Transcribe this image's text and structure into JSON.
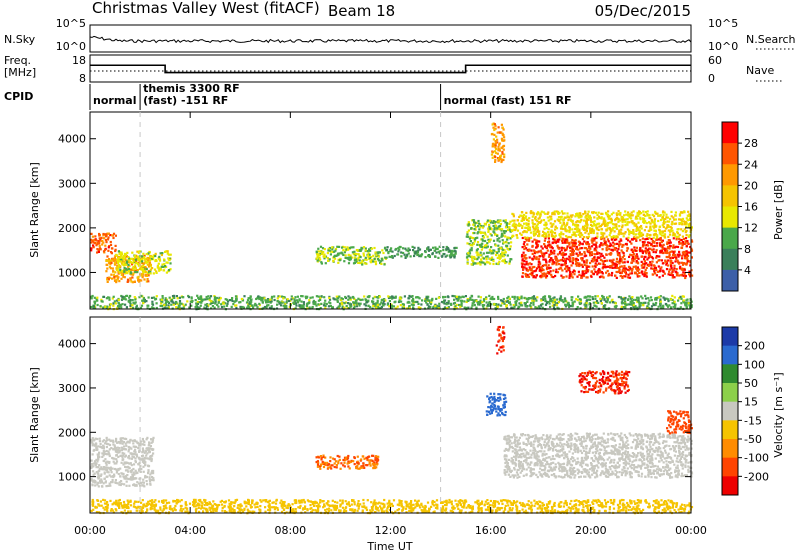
{
  "header": {
    "title": "Christmas Valley West (fitACF)",
    "beam": "Beam 18",
    "date": "05/Dec/2015"
  },
  "sky_panel": {
    "left_label": "N.Sky",
    "right_label": "N.Search",
    "ticks_left": [
      "10^5",
      "10^0"
    ],
    "ticks_right": [
      "10^5",
      "10^0"
    ]
  },
  "freq_panel": {
    "left_label_1": "Freq.",
    "left_label_2": "[MHz]",
    "right_label": "Nave",
    "ticks_left": [
      "18",
      "8"
    ],
    "ticks_right": [
      "60",
      "0"
    ]
  },
  "cpid": {
    "label": "CPID",
    "modes": [
      {
        "start": 0,
        "lines": [
          "normal"
        ]
      },
      {
        "start": 2,
        "lines": [
          "themis 3300 RF",
          "(fast) -151 RF"
        ]
      },
      {
        "start": 14,
        "lines": [
          "normal (fast) 151 RF"
        ]
      }
    ]
  },
  "x_axis": {
    "label": "Time UT",
    "ticks": [
      "00:00",
      "04:00",
      "08:00",
      "12:00",
      "16:00",
      "20:00",
      "00:00"
    ]
  },
  "power_panel": {
    "ylabel": "Slant Range [km]",
    "yticks": [
      "1000",
      "2000",
      "3000",
      "4000"
    ],
    "colorbar_label": "Power [dB]",
    "colorbar_ticks": [
      "28",
      "24",
      "20",
      "16",
      "12",
      "8",
      "4"
    ],
    "colorbar_colors": [
      "#ff0000",
      "#ff5500",
      "#ff9900",
      "#f5c400",
      "#e8e800",
      "#4aa84a",
      "#3a7f5a",
      "#3c5fa8",
      "#1c1ccc"
    ]
  },
  "velocity_panel": {
    "ylabel": "Slant Range [km]",
    "yticks": [
      "1000",
      "2000",
      "3000",
      "4000"
    ],
    "colorbar_label": "Velocity [m s⁻¹]",
    "colorbar_ticks": [
      "200",
      "100",
      "50",
      "15",
      "-15",
      "-50",
      "-100",
      "-200"
    ],
    "colorbar_colors": [
      "#1c3aa8",
      "#2a6ad0",
      "#2f8a2f",
      "#8ccf4a",
      "#c8c8c0",
      "#f5c400",
      "#ff8c00",
      "#ff4400",
      "#ee0000"
    ]
  },
  "chart_data": {
    "type": "heatmap",
    "title": "Christmas Valley West (fitACF)",
    "xlabel": "Time UT",
    "ylabel": "Slant Range [km]",
    "xlim_hours": [
      0,
      24
    ],
    "ylim_km": [
      180,
      4600
    ],
    "frequency_mhz": [
      {
        "t0": 0,
        "t1": 3,
        "value": 14.2
      },
      {
        "t0": 3,
        "t1": 15,
        "value": 11.5
      },
      {
        "t0": 15,
        "t1": 24,
        "value": 14.2
      }
    ],
    "power_regions": [
      {
        "t0": 0,
        "t1": 1.0,
        "r0": 1450,
        "r1": 1900,
        "value_db": 26
      },
      {
        "t0": 0.6,
        "t1": 2.4,
        "r0": 800,
        "r1": 1400,
        "value_db": 22
      },
      {
        "t0": 1.0,
        "t1": 3.2,
        "r0": 1000,
        "r1": 1500,
        "value_db": 14
      },
      {
        "t0": 0,
        "t1": 24,
        "r0": 200,
        "r1": 500,
        "value_db": 10
      },
      {
        "t0": 9.0,
        "t1": 11.8,
        "r0": 1200,
        "r1": 1600,
        "value_db": 12
      },
      {
        "t0": 11.8,
        "t1": 14.6,
        "r0": 1350,
        "r1": 1600,
        "value_db": 8
      },
      {
        "t0": 15.0,
        "t1": 16.8,
        "r0": 1200,
        "r1": 2200,
        "value_db": 12
      },
      {
        "t0": 17.2,
        "t1": 24,
        "r0": 900,
        "r1": 1800,
        "value_db": 28
      },
      {
        "t0": 16.8,
        "t1": 24,
        "r0": 1800,
        "r1": 2400,
        "value_db": 16
      },
      {
        "t0": 16.0,
        "t1": 16.5,
        "r0": 3500,
        "r1": 4400,
        "value_db": 22
      }
    ],
    "velocity_regions": [
      {
        "t0": 0,
        "t1": 2.5,
        "r0": 800,
        "r1": 1900,
        "value_ms": 0
      },
      {
        "t0": 0,
        "t1": 24,
        "r0": 200,
        "r1": 500,
        "value_ms": -30
      },
      {
        "t0": 9.0,
        "t1": 11.5,
        "r0": 1200,
        "r1": 1500,
        "value_ms": -100
      },
      {
        "t0": 15.8,
        "t1": 16.6,
        "r0": 2400,
        "r1": 2900,
        "value_ms": 150
      },
      {
        "t0": 16.2,
        "t1": 16.5,
        "r0": 3800,
        "r1": 4400,
        "value_ms": -200
      },
      {
        "t0": 16.5,
        "t1": 24,
        "r0": 1000,
        "r1": 2000,
        "value_ms": 0
      },
      {
        "t0": 23.0,
        "t1": 24,
        "r0": 2000,
        "r1": 2500,
        "value_ms": -150
      },
      {
        "t0": 19.5,
        "t1": 21.5,
        "r0": 2900,
        "r1": 3400,
        "value_ms": -200
      }
    ]
  }
}
